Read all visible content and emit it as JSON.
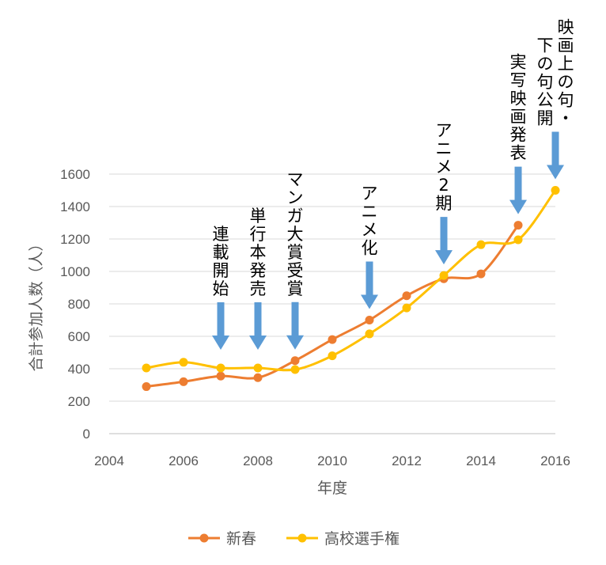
{
  "chart_data": {
    "type": "line",
    "xlabel": "年度",
    "ylabel": "合計参加人数（人）",
    "xlim": [
      2004,
      2016
    ],
    "ylim": [
      0,
      1600
    ],
    "x_ticks": [
      2004,
      2006,
      2008,
      2010,
      2012,
      2014,
      2016
    ],
    "y_ticks": [
      0,
      200,
      400,
      600,
      800,
      1000,
      1200,
      1400,
      1600
    ],
    "grid": "horizontal",
    "legend_position": "bottom",
    "series": [
      {
        "name": "新春",
        "color": "#ED7D31",
        "x": [
          2005,
          2006,
          2007,
          2008,
          2009,
          2010,
          2011,
          2012,
          2013,
          2014,
          2015
        ],
        "values": [
          290,
          320,
          355,
          345,
          450,
          580,
          700,
          850,
          955,
          985,
          1285
        ]
      },
      {
        "name": "高校選手権",
        "color": "#FFC000",
        "x": [
          2005,
          2006,
          2007,
          2008,
          2009,
          2010,
          2011,
          2012,
          2013,
          2014,
          2015,
          2016
        ],
        "values": [
          405,
          440,
          405,
          405,
          395,
          480,
          615,
          775,
          975,
          1165,
          1195,
          1500
        ]
      }
    ],
    "annotations": [
      {
        "x": 2007,
        "lines": [
          "連",
          "載",
          "開",
          "始"
        ],
        "arrow_color": "#5B9BD5"
      },
      {
        "x": 2008,
        "lines": [
          "単",
          "行",
          "本",
          "発",
          "売"
        ],
        "arrow_color": "#5B9BD5"
      },
      {
        "x": 2009,
        "lines": [
          "マ",
          "ン",
          "ガ",
          "大",
          "賞",
          "受",
          "賞"
        ],
        "arrow_color": "#5B9BD5"
      },
      {
        "x": 2011,
        "lines": [
          "ア",
          "ニ",
          "メ",
          "化"
        ],
        "arrow_color": "#5B9BD5"
      },
      {
        "x": 2013,
        "lines": [
          "ア",
          "ニ",
          "メ",
          "2",
          "期"
        ],
        "arrow_color": "#5B9BD5"
      },
      {
        "x": 2015,
        "lines": [
          "実",
          "写",
          "映",
          "画",
          "発",
          "表"
        ],
        "arrow_color": "#5B9BD5"
      },
      {
        "x": 2016,
        "lines": [
          "映",
          "画",
          "上",
          "の",
          "句",
          "・"
        ],
        "lines2": [
          "下",
          "の",
          "句",
          "公",
          "開"
        ],
        "arrow_color": "#5B9BD5"
      }
    ]
  }
}
